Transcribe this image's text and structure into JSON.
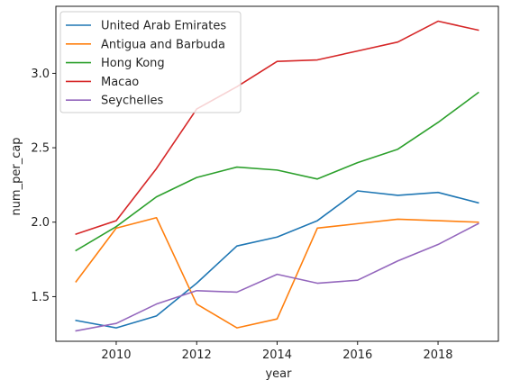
{
  "chart_data": {
    "type": "line",
    "xlabel": "year",
    "ylabel": "num_per_cap",
    "xlim": [
      2008.5,
      2019.5
    ],
    "ylim": [
      1.2,
      3.45
    ],
    "xticks": [
      2010,
      2012,
      2014,
      2016,
      2018
    ],
    "yticks": [
      1.5,
      2.0,
      2.5,
      3.0
    ],
    "xtick_labels": [
      "2010",
      "2012",
      "2014",
      "2016",
      "2018"
    ],
    "ytick_labels": [
      "1.5",
      "2.0",
      "2.5",
      "3.0"
    ],
    "legend_position": "top-left",
    "grid": false,
    "x": [
      2009,
      2010,
      2011,
      2012,
      2013,
      2014,
      2015,
      2016,
      2017,
      2018,
      2019
    ],
    "series": [
      {
        "name": "United Arab Emirates",
        "color": "#1f77b4",
        "values": [
          1.34,
          1.29,
          1.37,
          1.59,
          1.84,
          1.9,
          2.01,
          2.21,
          2.18,
          2.2,
          2.13
        ]
      },
      {
        "name": "Antigua and Barbuda",
        "color": "#ff7f0e",
        "values": [
          1.6,
          1.96,
          2.03,
          1.45,
          1.29,
          1.35,
          1.96,
          1.99,
          2.02,
          2.01,
          2.0
        ]
      },
      {
        "name": "Hong Kong",
        "color": "#2ca02c",
        "values": [
          1.81,
          1.97,
          2.17,
          2.3,
          2.37,
          2.35,
          2.29,
          2.4,
          2.49,
          2.67,
          2.87
        ]
      },
      {
        "name": "Macao",
        "color": "#d62728",
        "values": [
          1.92,
          2.01,
          2.36,
          2.76,
          2.91,
          3.08,
          3.09,
          3.15,
          3.21,
          3.35,
          3.29
        ]
      },
      {
        "name": "Seychelles",
        "color": "#9467bd",
        "values": [
          1.27,
          1.32,
          1.45,
          1.54,
          1.53,
          1.65,
          1.59,
          1.61,
          1.74,
          1.85,
          1.99
        ]
      }
    ]
  }
}
